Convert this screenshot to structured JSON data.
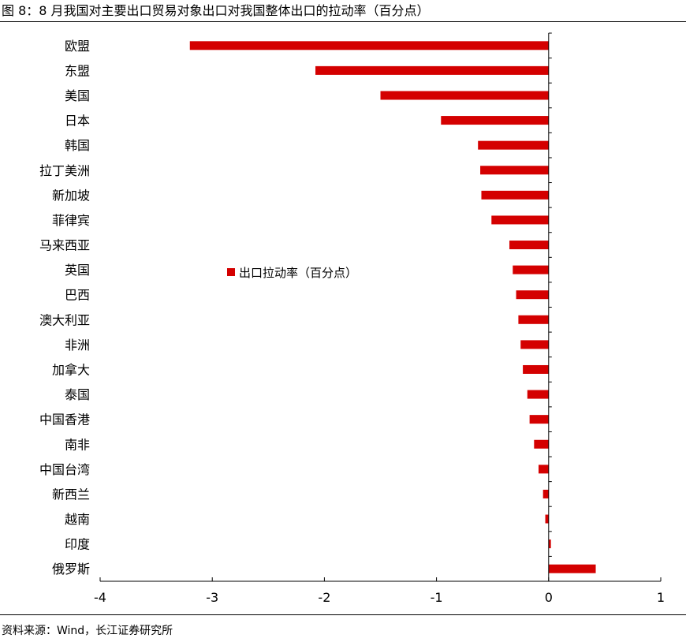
{
  "figure": {
    "title": "图 8：8 月我国对主要出口贸易对象出口对我国整体出口的拉动率（百分点）",
    "source": "资料来源：Wind，长江证券研究所"
  },
  "colors": {
    "bar": "#D40000",
    "axis": "#000000",
    "text": "#000000"
  },
  "chart_data": {
    "type": "bar",
    "orientation": "horizontal",
    "title": "",
    "xlabel": "",
    "ylabel": "",
    "xlim": [
      -4,
      1
    ],
    "xticks": [
      -4,
      -3,
      -2,
      -1,
      0,
      1
    ],
    "grid": false,
    "legend_position": "center",
    "categories": [
      "欧盟",
      "东盟",
      "美国",
      "日本",
      "韩国",
      "拉丁美洲",
      "新加坡",
      "菲律宾",
      "马来西亚",
      "英国",
      "巴西",
      "澳大利亚",
      "非洲",
      "加拿大",
      "泰国",
      "中国香港",
      "南非",
      "中国台湾",
      "新西兰",
      "越南",
      "印度",
      "俄罗斯"
    ],
    "series": [
      {
        "name": "出口拉动率（百分点）",
        "values": [
          -3.2,
          -2.08,
          -1.5,
          -0.96,
          -0.63,
          -0.61,
          -0.6,
          -0.51,
          -0.35,
          -0.32,
          -0.29,
          -0.27,
          -0.25,
          -0.23,
          -0.19,
          -0.17,
          -0.13,
          -0.09,
          -0.05,
          -0.03,
          0.02,
          0.42
        ]
      }
    ]
  }
}
